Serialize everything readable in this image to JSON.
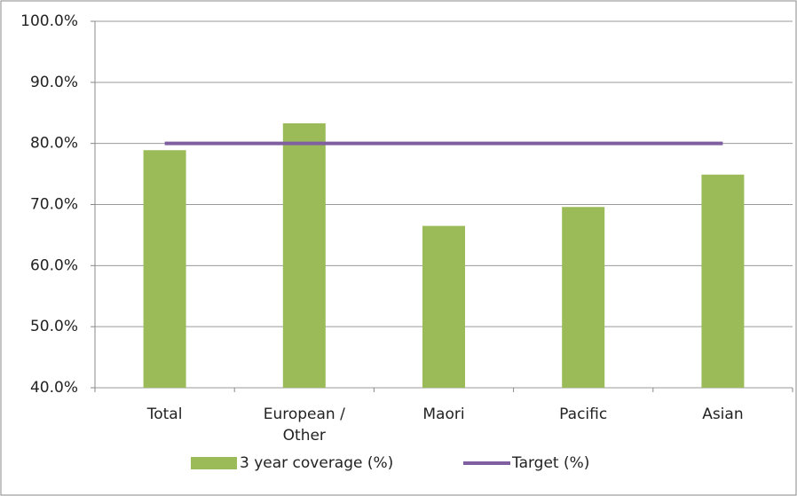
{
  "chart_data": {
    "type": "bar",
    "categories": [
      "Total",
      "European / Other",
      "Maori",
      "Pacific",
      "Asian"
    ],
    "series": [
      {
        "name": "3 year coverage (%)",
        "type": "bar",
        "color": "#9bbb59",
        "values": [
          78.9,
          83.3,
          66.5,
          69.6,
          74.9
        ]
      },
      {
        "name": "Target (%)",
        "type": "line",
        "color": "#7f5fa0",
        "values": [
          80,
          80,
          80,
          80,
          80
        ]
      }
    ],
    "ylim": [
      40,
      100
    ],
    "yticks": [
      {
        "value": 40,
        "label": "40.0%"
      },
      {
        "value": 50,
        "label": "50.0%"
      },
      {
        "value": 60,
        "label": "60.0%"
      },
      {
        "value": 70,
        "label": "70.0%"
      },
      {
        "value": 80,
        "label": "80.0%"
      },
      {
        "value": 90,
        "label": "90.0%"
      },
      {
        "value": 100,
        "label": "100.0%"
      }
    ],
    "grid": true
  }
}
